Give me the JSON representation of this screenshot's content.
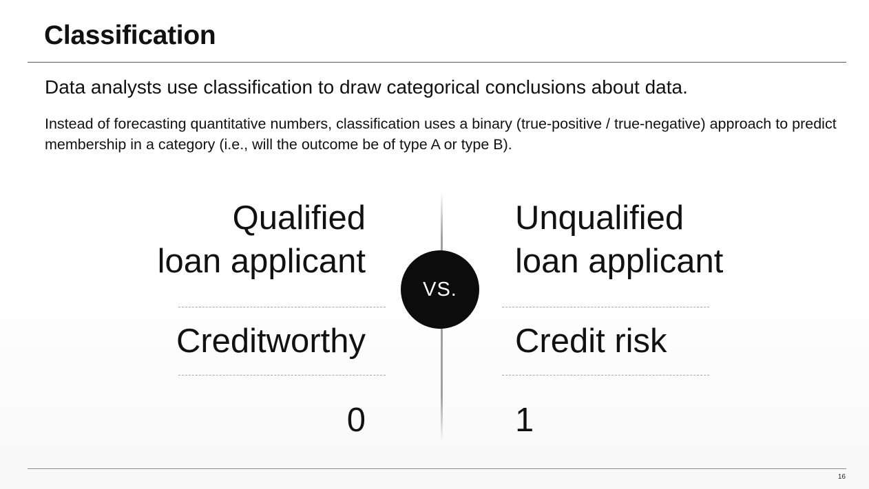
{
  "slide": {
    "title": "Classification",
    "lead": "Data analysts use classification to draw categorical conclusions about data.",
    "body": "Instead of forecasting quantitative numbers, classification uses a binary (true-positive / true-negative) approach to predict membership in a category (i.e., will the outcome be of type A or type B).",
    "page_number": "16"
  },
  "comparison": {
    "vs_label": "VS.",
    "left": {
      "heading_line1": "Qualified",
      "heading_line2": "loan applicant",
      "term": "Creditworthy",
      "value": "0"
    },
    "right": {
      "heading_line1": "Unqualified",
      "heading_line2": "loan applicant",
      "term": "Credit risk",
      "value": "1"
    }
  }
}
